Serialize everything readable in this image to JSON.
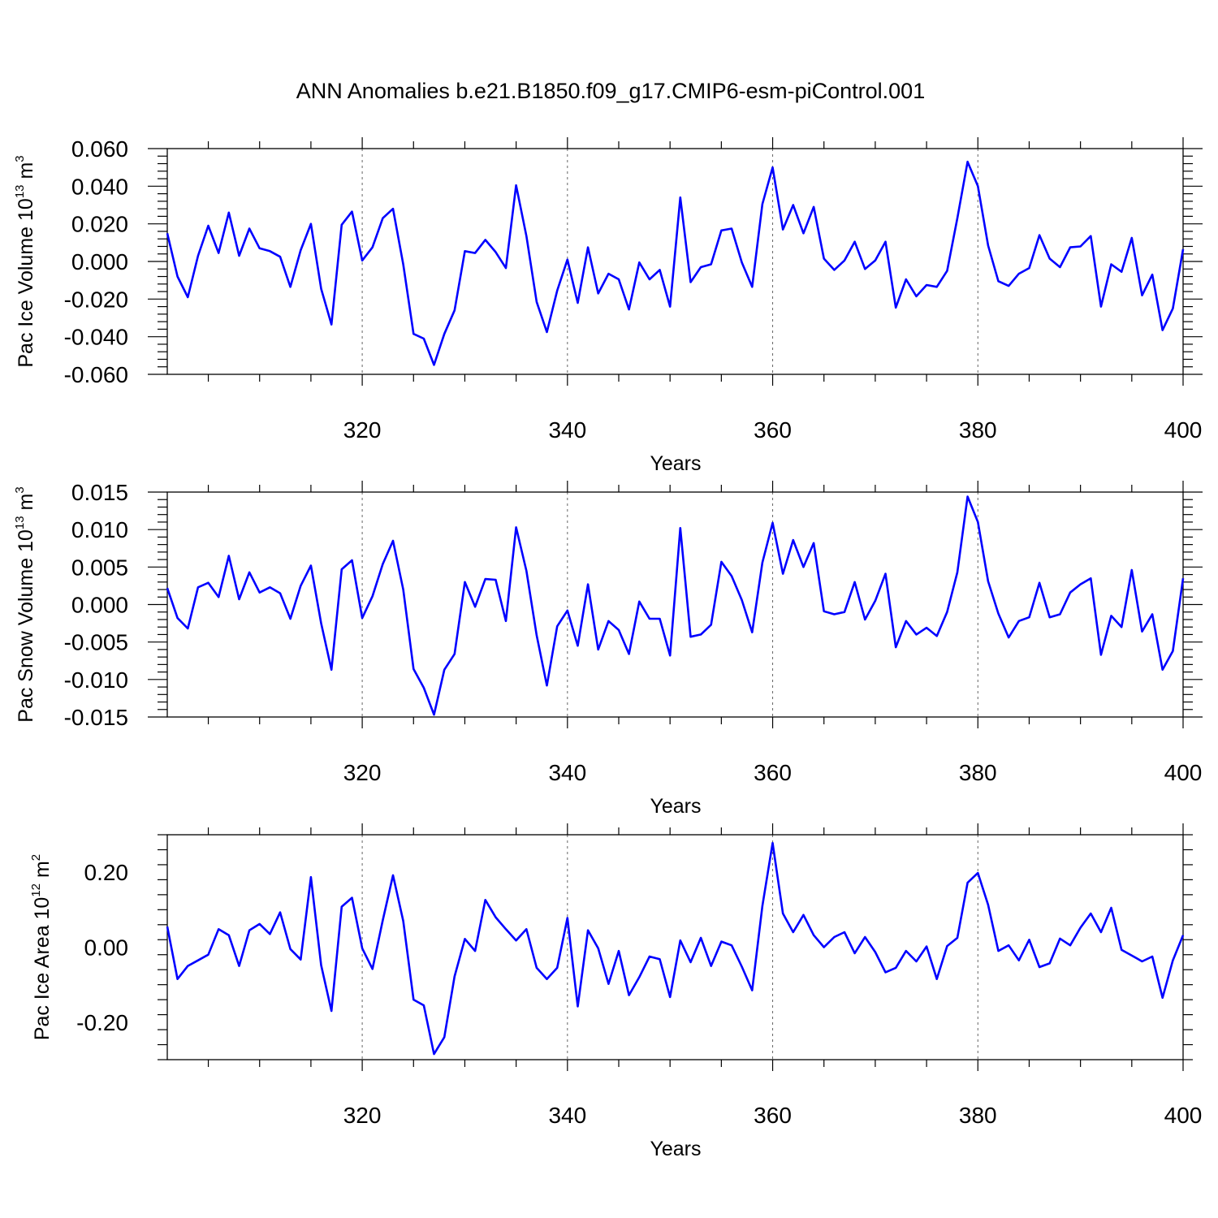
{
  "title": "ANN Anomalies b.e21.B1850.f09_g17.CMIP6-esm-piControl.001",
  "colors": {
    "series": "#0000ff",
    "axes": "#000000",
    "grid": "#666666"
  },
  "chart_data": [
    {
      "type": "line",
      "ylabel": "Pac Ice Volume",
      "yunit_base": "10",
      "yunit_exp": "13",
      "yunit_suffix": "m",
      "yunit_suffix_exp": "3",
      "xlabel": "Years",
      "xlim": [
        301,
        400
      ],
      "ylim": [
        -0.06,
        0.06
      ],
      "xticks": [
        320,
        340,
        360,
        380,
        400
      ],
      "yticks": [
        -0.06,
        -0.04,
        -0.02,
        0.0,
        0.02,
        0.04,
        0.06
      ],
      "ytick_labels": [
        "-0.060",
        "-0.040",
        "-0.020",
        "0.000",
        "0.020",
        "0.040",
        "0.060"
      ],
      "grid": "vertical dashed at major x ticks",
      "x_start": 301,
      "values": [
        0.015,
        -0.008,
        -0.019,
        0.003,
        0.019,
        0.0045,
        0.026,
        0.003,
        0.0175,
        0.007,
        0.0055,
        0.0025,
        -0.0135,
        0.006,
        0.02,
        -0.0145,
        -0.0335,
        0.0195,
        0.0265,
        0.0005,
        0.0075,
        0.023,
        0.028,
        -0.0015,
        -0.0385,
        -0.041,
        -0.055,
        -0.0385,
        -0.026,
        0.0055,
        0.0045,
        0.0115,
        0.005,
        -0.0035,
        0.0405,
        0.0135,
        -0.0215,
        -0.0375,
        -0.0155,
        0.001,
        -0.022,
        0.0075,
        -0.017,
        -0.0065,
        -0.0095,
        -0.0255,
        -0.0005,
        -0.0095,
        -0.0045,
        -0.024,
        0.034,
        -0.011,
        -0.003,
        -0.0015,
        0.0165,
        0.0175,
        -0.0005,
        -0.0135,
        0.0305,
        0.05,
        0.017,
        0.03,
        0.015,
        0.029,
        0.0015,
        -0.0045,
        0.0005,
        0.0105,
        -0.004,
        0.0005,
        0.0105,
        -0.0245,
        -0.0095,
        -0.0185,
        -0.0125,
        -0.0135,
        -0.005,
        0.023,
        0.053,
        0.04,
        0.0085,
        -0.0105,
        -0.013,
        -0.0065,
        -0.0035,
        0.014,
        0.0015,
        -0.003,
        0.0075,
        0.008,
        0.0135,
        -0.024,
        -0.0015,
        -0.0055,
        0.0125,
        -0.018,
        -0.007,
        -0.0365,
        -0.025,
        0.0065
      ]
    },
    {
      "type": "line",
      "ylabel": "Pac Snow Volume",
      "yunit_base": "10",
      "yunit_exp": "13",
      "yunit_suffix": "m",
      "yunit_suffix_exp": "3",
      "xlabel": "Years",
      "xlim": [
        301,
        400
      ],
      "ylim": [
        -0.015,
        0.015
      ],
      "xticks": [
        320,
        340,
        360,
        380,
        400
      ],
      "yticks": [
        -0.015,
        -0.01,
        -0.005,
        0.0,
        0.005,
        0.01,
        0.015
      ],
      "ytick_labels": [
        "-0.015",
        "-0.010",
        "-0.005",
        "0.000",
        "0.005",
        "0.010",
        "0.015"
      ],
      "grid": "vertical dashed at major x ticks",
      "x_start": 301,
      "values": [
        0.0022,
        -0.0018,
        -0.0032,
        0.0023,
        0.0029,
        0.001,
        0.0065,
        0.0007,
        0.0043,
        0.0016,
        0.0023,
        0.0015,
        -0.0019,
        0.0025,
        0.0052,
        -0.0025,
        -0.0087,
        0.0047,
        0.0059,
        -0.0018,
        0.0011,
        0.0054,
        0.0085,
        0.002,
        -0.0086,
        -0.0111,
        -0.0147,
        -0.0087,
        -0.0066,
        0.003,
        -0.0003,
        0.0034,
        0.0033,
        -0.0022,
        0.0103,
        0.0045,
        -0.0041,
        -0.0108,
        -0.0029,
        -0.0008,
        -0.0055,
        0.0027,
        -0.006,
        -0.0022,
        -0.0034,
        -0.0066,
        0.0004,
        -0.0019,
        -0.0019,
        -0.0068,
        0.0102,
        -0.0043,
        -0.004,
        -0.0027,
        0.0057,
        0.0038,
        0.0006,
        -0.0037,
        0.0056,
        0.0109,
        0.0041,
        0.0086,
        0.005,
        0.0082,
        -0.0009,
        -0.0013,
        -0.001,
        0.003,
        -0.002,
        0.0005,
        0.0041,
        -0.0057,
        -0.0022,
        -0.004,
        -0.0031,
        -0.0042,
        -0.001,
        0.0043,
        0.0144,
        0.011,
        0.0031,
        -0.0012,
        -0.0044,
        -0.0022,
        -0.0017,
        0.0029,
        -0.0017,
        -0.0013,
        0.0016,
        0.0027,
        0.0035,
        -0.0067,
        -0.0015,
        -0.003,
        0.0046,
        -0.0036,
        -0.0013,
        -0.0087,
        -0.0062,
        0.0035
      ]
    },
    {
      "type": "line",
      "ylabel": "Pac Ice Area",
      "yunit_base": "10",
      "yunit_exp": "12",
      "yunit_suffix": "m",
      "yunit_suffix_exp": "2",
      "xlabel": "Years",
      "xlim": [
        301,
        400
      ],
      "ylim": [
        -0.3,
        0.3
      ],
      "xticks": [
        320,
        340,
        360,
        380,
        400
      ],
      "yticks": [
        -0.2,
        0.0,
        0.2
      ],
      "ytick_labels": [
        "-0.20",
        "0.00",
        "0.20"
      ],
      "grid": "vertical dashed at major x ticks",
      "x_start": 301,
      "values": [
        0.055,
        -0.085,
        -0.05,
        -0.035,
        -0.02,
        0.048,
        0.032,
        -0.05,
        0.045,
        0.062,
        0.035,
        0.093,
        -0.005,
        -0.033,
        0.187,
        -0.048,
        -0.17,
        0.108,
        0.132,
        -0.003,
        -0.058,
        0.072,
        0.192,
        0.07,
        -0.14,
        -0.155,
        -0.285,
        -0.24,
        -0.078,
        0.022,
        -0.01,
        0.126,
        0.08,
        0.048,
        0.018,
        0.048,
        -0.055,
        -0.085,
        -0.055,
        0.078,
        -0.158,
        0.045,
        -0.003,
        -0.098,
        -0.01,
        -0.128,
        -0.08,
        -0.025,
        -0.032,
        -0.133,
        0.018,
        -0.04,
        0.025,
        -0.05,
        0.015,
        0.005,
        -0.052,
        -0.115,
        0.11,
        0.278,
        0.09,
        0.04,
        0.086,
        0.032,
        0.0,
        0.027,
        0.04,
        -0.016,
        0.027,
        -0.013,
        -0.067,
        -0.055,
        -0.01,
        -0.038,
        0.002,
        -0.085,
        0.003,
        0.025,
        0.172,
        0.198,
        0.113,
        -0.01,
        0.005,
        -0.035,
        0.02,
        -0.053,
        -0.043,
        0.023,
        0.005,
        0.052,
        0.09,
        0.04,
        0.105,
        -0.007,
        -0.022,
        -0.038,
        -0.025,
        -0.135,
        -0.035,
        0.032
      ]
    }
  ]
}
